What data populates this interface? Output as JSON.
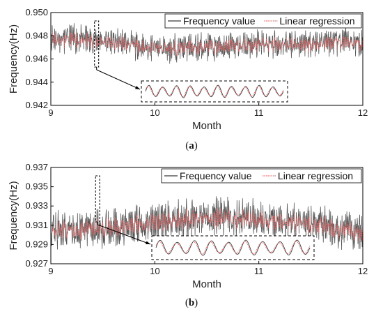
{
  "chart_data": [
    {
      "type": "line",
      "panel_label": "(a)",
      "xlabel": "Month",
      "ylabel": "Frequency(Hz)",
      "xlim": [
        9,
        12
      ],
      "ylim": [
        0.942,
        0.95
      ],
      "xticks": [
        "9",
        "10",
        "11",
        "12"
      ],
      "yticks": [
        "0.942",
        "0.944",
        "0.946",
        "0.948",
        "0.950"
      ],
      "legend_position": "top-right",
      "legend": [
        "Frequency value",
        "Linear regression"
      ],
      "series": [
        {
          "name": "Frequency value",
          "color": "#3a3a3a",
          "style": "solid",
          "mean": 0.9472,
          "amplitude": 0.0011,
          "x": [
            9,
            9.5,
            10,
            10.5,
            11,
            11.5,
            12
          ],
          "y": [
            0.9478,
            0.9476,
            0.9469,
            0.947,
            0.9472,
            0.9474,
            0.9475
          ]
        },
        {
          "name": "Linear regression",
          "color": "#e07070",
          "style": "dotted",
          "mean": 0.9472,
          "amplitude": 0.0008,
          "x": [
            9,
            9.5,
            10,
            10.5,
            11,
            11.5,
            12
          ],
          "y": [
            0.9477,
            0.9475,
            0.9469,
            0.947,
            0.9472,
            0.9473,
            0.9474
          ]
        }
      ],
      "zoom_window_x": [
        9.42,
        9.46
      ]
    },
    {
      "type": "line",
      "panel_label": "(b)",
      "xlabel": "Month",
      "ylabel": "Frequency(Hz)",
      "xlim": [
        9,
        12
      ],
      "ylim": [
        0.927,
        0.937
      ],
      "xticks": [
        "9",
        "10",
        "11",
        "12"
      ],
      "yticks": [
        "0.927",
        "0.929",
        "0.931",
        "0.933",
        "0.935",
        "0.937"
      ],
      "legend_position": "top-right",
      "legend": [
        "Frequency value",
        "Linear regression"
      ],
      "series": [
        {
          "name": "Frequency value",
          "color": "#3a3a3a",
          "style": "solid",
          "mean": 0.931,
          "amplitude": 0.0018,
          "x": [
            9,
            9.5,
            10,
            10.5,
            11,
            11.5,
            12
          ],
          "y": [
            0.9305,
            0.9307,
            0.9315,
            0.9318,
            0.9316,
            0.9312,
            0.9303
          ]
        },
        {
          "name": "Linear regression",
          "color": "#e07070",
          "style": "dotted",
          "mean": 0.931,
          "amplitude": 0.0012,
          "x": [
            9,
            9.5,
            10,
            10.5,
            11,
            11.5,
            12
          ],
          "y": [
            0.9304,
            0.9307,
            0.9314,
            0.9317,
            0.9315,
            0.9311,
            0.9302
          ]
        }
      ],
      "zoom_window_x": [
        9.43,
        9.47
      ]
    }
  ]
}
